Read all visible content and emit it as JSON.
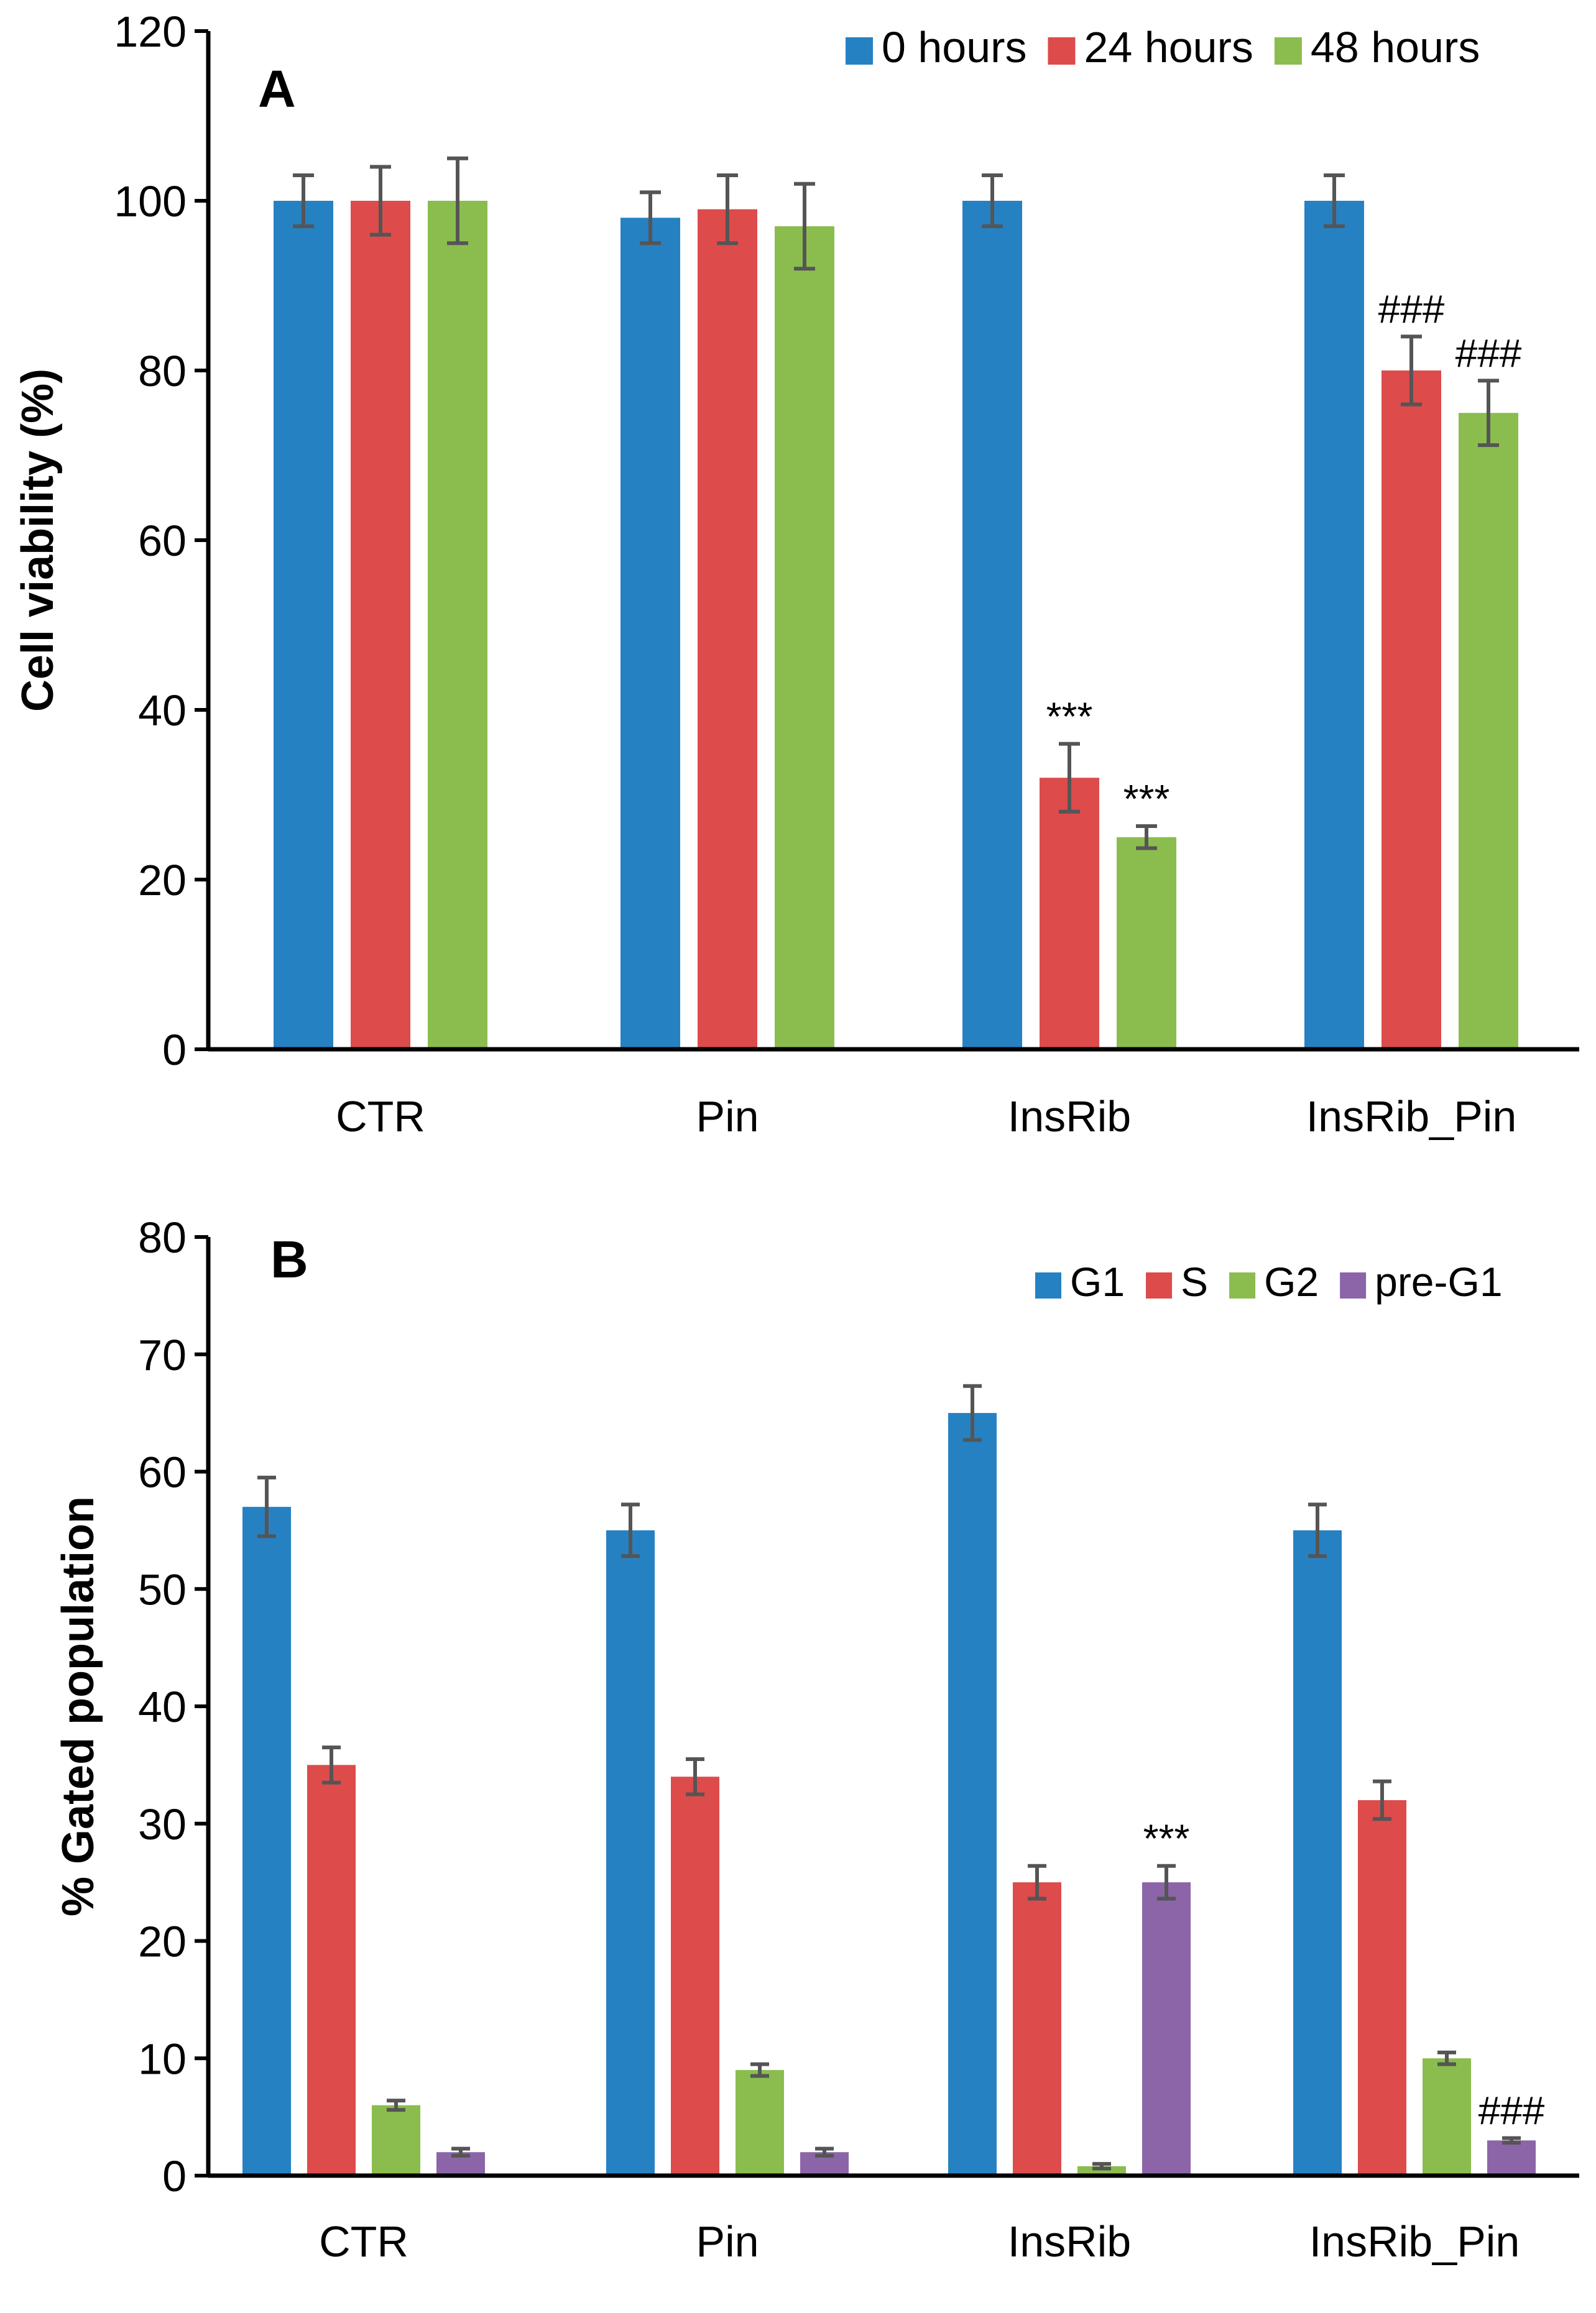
{
  "chart_data": [
    {
      "panel": "A",
      "type": "bar",
      "title": "",
      "xlabel": "",
      "ylabel": "Cell viability (%)",
      "ylim": [
        0,
        120
      ],
      "yticks": [
        "0",
        "20",
        "40",
        "60",
        "80",
        "100",
        "120"
      ],
      "categories": [
        "CTR",
        "Pin",
        "InsRib",
        "InsRib_Pin"
      ],
      "legend_position": "top-right",
      "series": [
        {
          "name": "0 hours",
          "color": "#2681c3",
          "values": [
            100,
            98,
            100,
            100
          ],
          "errors": [
            3,
            3,
            3,
            3
          ],
          "annotations": [
            "",
            "",
            "",
            ""
          ]
        },
        {
          "name": "24 hours",
          "color": "#dd4b4b",
          "values": [
            100,
            99,
            32,
            80
          ],
          "errors": [
            4,
            4,
            4,
            4
          ],
          "annotations": [
            "",
            "",
            "***",
            "###"
          ]
        },
        {
          "name": "48 hours",
          "color": "#8bbd4e",
          "values": [
            100,
            97,
            25,
            75
          ],
          "errors": [
            5,
            5,
            1.3,
            3.8
          ],
          "annotations": [
            "",
            "",
            "***",
            "###"
          ]
        }
      ]
    },
    {
      "panel": "B",
      "type": "bar",
      "title": "",
      "xlabel": "",
      "ylabel": "% Gated population",
      "ylim": [
        0,
        80
      ],
      "yticks": [
        "0",
        "10",
        "20",
        "30",
        "40",
        "50",
        "60",
        "70",
        "80"
      ],
      "categories": [
        "CTR",
        "Pin",
        "InsRib",
        "InsRib_Pin"
      ],
      "legend_position": "top-right",
      "series": [
        {
          "name": "G1",
          "color": "#2681c3",
          "values": [
            57,
            55,
            65,
            55
          ],
          "errors": [
            2.5,
            2.2,
            2.3,
            2.2
          ],
          "annotations": [
            "",
            "",
            "",
            ""
          ]
        },
        {
          "name": "S",
          "color": "#dd4b4b",
          "values": [
            35,
            34,
            25,
            32
          ],
          "errors": [
            1.5,
            1.5,
            1.4,
            1.6
          ],
          "annotations": [
            "",
            "",
            "",
            ""
          ]
        },
        {
          "name": "G2",
          "color": "#8bbd4e",
          "values": [
            6,
            9,
            0.8,
            10
          ],
          "errors": [
            0.4,
            0.5,
            0.2,
            0.5
          ],
          "annotations": [
            "",
            "",
            "",
            ""
          ]
        },
        {
          "name": "pre-G1",
          "color": "#8b65a8",
          "values": [
            2,
            2,
            25,
            3
          ],
          "errors": [
            0.3,
            0.3,
            1.4,
            0.2
          ],
          "annotations": [
            "",
            "",
            "***",
            "###"
          ]
        }
      ]
    }
  ]
}
